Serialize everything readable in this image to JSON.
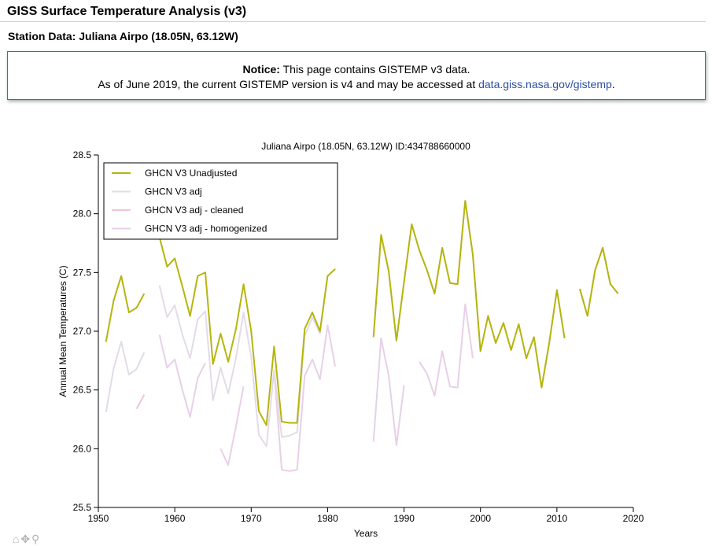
{
  "header": {
    "title": "GISS Surface Temperature Analysis (v3)"
  },
  "station": {
    "title": "Station Data: Juliana Airpo (18.05N, 63.12W)"
  },
  "notice": {
    "label": "Notice:",
    "text1": "This page contains GISTEMP v3 data.",
    "text2": "As of June 2019, the current GISTEMP version is v4 and may be accessed at",
    "link": "data.giss.nasa.gov/gistemp",
    "text3": "."
  },
  "chart_data": {
    "type": "line",
    "title": "Juliana Airpo (18.05N, 63.12W) ID:434788660000",
    "xlabel": "Years",
    "ylabel": "Annual Mean Temperatures (C)",
    "xlim": [
      1950,
      2020
    ],
    "ylim": [
      25.5,
      28.5
    ],
    "xticks": [
      "1950",
      "1960",
      "1970",
      "1980",
      "1990",
      "2000",
      "2010",
      "2020"
    ],
    "yticks": [
      "25.5",
      "26.0",
      "26.5",
      "27.0",
      "27.5",
      "28.0",
      "28.5"
    ],
    "legend_position": "top-left",
    "series": [
      {
        "name": "GHCN V3 Unadjusted",
        "color": "#b5b50e",
        "segments": [
          [
            [
              1951,
              26.91
            ],
            [
              1952,
              27.26
            ],
            [
              1953,
              27.47
            ],
            [
              1954,
              27.16
            ],
            [
              1955,
              27.2
            ],
            [
              1956,
              27.32
            ]
          ],
          [
            [
              1958,
              27.8
            ],
            [
              1959,
              27.55
            ],
            [
              1960,
              27.62
            ],
            [
              1961,
              27.38
            ],
            [
              1962,
              27.13
            ],
            [
              1963,
              27.47
            ],
            [
              1964,
              27.5
            ],
            [
              1965,
              26.72
            ],
            [
              1966,
              26.98
            ],
            [
              1967,
              26.74
            ],
            [
              1968,
              27.02
            ],
            [
              1969,
              27.4
            ],
            [
              1970,
              27.0
            ],
            [
              1971,
              26.32
            ],
            [
              1972,
              26.2
            ],
            [
              1973,
              26.87
            ],
            [
              1974,
              26.23
            ],
            [
              1975,
              26.22
            ],
            [
              1976,
              26.22
            ],
            [
              1977,
              27.02
            ],
            [
              1978,
              27.16
            ],
            [
              1979,
              27.0
            ],
            [
              1980,
              27.47
            ],
            [
              1981,
              27.53
            ]
          ],
          [
            [
              1986,
              26.95
            ],
            [
              1987,
              27.82
            ],
            [
              1988,
              27.51
            ],
            [
              1989,
              26.92
            ],
            [
              1990,
              27.42
            ],
            [
              1991,
              27.91
            ],
            [
              1992,
              27.69
            ],
            [
              1993,
              27.52
            ],
            [
              1994,
              27.32
            ],
            [
              1995,
              27.71
            ],
            [
              1996,
              27.41
            ],
            [
              1997,
              27.4
            ],
            [
              1998,
              28.11
            ],
            [
              1999,
              27.65
            ],
            [
              2000,
              26.83
            ],
            [
              2001,
              27.13
            ],
            [
              2002,
              26.9
            ],
            [
              2003,
              27.07
            ],
            [
              2004,
              26.84
            ],
            [
              2005,
              27.06
            ],
            [
              2006,
              26.77
            ],
            [
              2007,
              26.95
            ],
            [
              2008,
              26.52
            ],
            [
              2009,
              26.9
            ],
            [
              2010,
              27.35
            ],
            [
              2011,
              26.94
            ]
          ],
          [
            [
              2013,
              27.36
            ],
            [
              2014,
              27.13
            ],
            [
              2015,
              27.52
            ],
            [
              2016,
              27.71
            ],
            [
              2017,
              27.4
            ],
            [
              2018,
              27.32
            ]
          ]
        ]
      },
      {
        "name": "GHCN V3 adj",
        "color": "#e3dbe8",
        "segments": [
          [
            [
              1951,
              26.31
            ],
            [
              1952,
              26.68
            ],
            [
              1953,
              26.91
            ],
            [
              1954,
              26.63
            ],
            [
              1955,
              26.68
            ],
            [
              1956,
              26.82
            ]
          ],
          [
            [
              1958,
              27.39
            ],
            [
              1959,
              27.12
            ],
            [
              1960,
              27.22
            ],
            [
              1961,
              26.97
            ],
            [
              1962,
              26.77
            ],
            [
              1963,
              27.1
            ],
            [
              1964,
              27.17
            ],
            [
              1965,
              26.41
            ],
            [
              1966,
              26.69
            ],
            [
              1967,
              26.47
            ],
            [
              1968,
              26.77
            ],
            [
              1969,
              27.16
            ],
            [
              1970,
              26.78
            ],
            [
              1971,
              26.12
            ],
            [
              1972,
              26.02
            ],
            [
              1973,
              26.67
            ],
            [
              1974,
              26.1
            ],
            [
              1975,
              26.11
            ],
            [
              1976,
              26.14
            ],
            [
              1977,
              26.96
            ],
            [
              1978,
              27.12
            ],
            [
              1979,
              26.98
            ],
            [
              1980,
              27.47
            ],
            [
              1981,
              27.53
            ]
          ],
          [
            [
              1986,
              26.95
            ],
            [
              1987,
              27.82
            ],
            [
              1988,
              27.51
            ],
            [
              1989,
              26.92
            ],
            [
              1990,
              27.42
            ],
            [
              1991,
              27.91
            ],
            [
              1992,
              27.69
            ],
            [
              1993,
              27.52
            ],
            [
              1994,
              27.32
            ],
            [
              1995,
              27.71
            ],
            [
              1996,
              27.41
            ],
            [
              1997,
              27.4
            ],
            [
              1998,
              28.11
            ],
            [
              1999,
              27.65
            ],
            [
              2000,
              26.83
            ],
            [
              2001,
              27.13
            ],
            [
              2002,
              26.9
            ],
            [
              2003,
              27.07
            ],
            [
              2004,
              26.84
            ],
            [
              2005,
              27.06
            ],
            [
              2006,
              26.77
            ],
            [
              2007,
              26.95
            ],
            [
              2008,
              26.52
            ],
            [
              2009,
              26.9
            ],
            [
              2010,
              27.35
            ],
            [
              2011,
              26.94
            ]
          ],
          [
            [
              2013,
              27.36
            ],
            [
              2014,
              27.13
            ],
            [
              2015,
              27.52
            ],
            [
              2016,
              27.71
            ],
            [
              2017,
              27.4
            ],
            [
              2018,
              27.32
            ]
          ]
        ]
      },
      {
        "name": "GHCN V3 adj - cleaned",
        "color": "#f1c6d2",
        "segments": [
          [
            [
              1955,
              26.34
            ],
            [
              1956,
              26.46
            ]
          ]
        ]
      },
      {
        "name": "GHCN V3 adj - homogenized",
        "color": "#e8d0e8",
        "segments": [
          [
            [
              1958,
              26.97
            ],
            [
              1959,
              26.69
            ],
            [
              1960,
              26.76
            ],
            [
              1961,
              26.5
            ],
            [
              1962,
              26.27
            ],
            [
              1963,
              26.6
            ],
            [
              1964,
              26.73
            ]
          ],
          [
            [
              1966,
              26.0
            ],
            [
              1967,
              25.86
            ],
            [
              1968,
              26.19
            ],
            [
              1969,
              26.53
            ]
          ],
          [
            [
              1973,
              26.66
            ],
            [
              1974,
              25.82
            ],
            [
              1975,
              25.81
            ],
            [
              1976,
              25.82
            ],
            [
              1977,
              26.62
            ],
            [
              1978,
              26.76
            ],
            [
              1979,
              26.59
            ],
            [
              1980,
              27.05
            ],
            [
              1981,
              26.7
            ]
          ],
          [
            [
              1986,
              26.06
            ],
            [
              1987,
              26.94
            ],
            [
              1988,
              26.62
            ],
            [
              1989,
              26.03
            ],
            [
              1990,
              26.54
            ]
          ],
          [
            [
              1992,
              26.74
            ],
            [
              1993,
              26.64
            ],
            [
              1994,
              26.45
            ],
            [
              1995,
              26.83
            ],
            [
              1996,
              26.53
            ],
            [
              1997,
              26.52
            ],
            [
              1998,
              27.23
            ],
            [
              1999,
              26.77
            ]
          ]
        ]
      }
    ]
  },
  "tools": {
    "home": "⌂",
    "pan": "✥",
    "zoom": "⚲"
  }
}
